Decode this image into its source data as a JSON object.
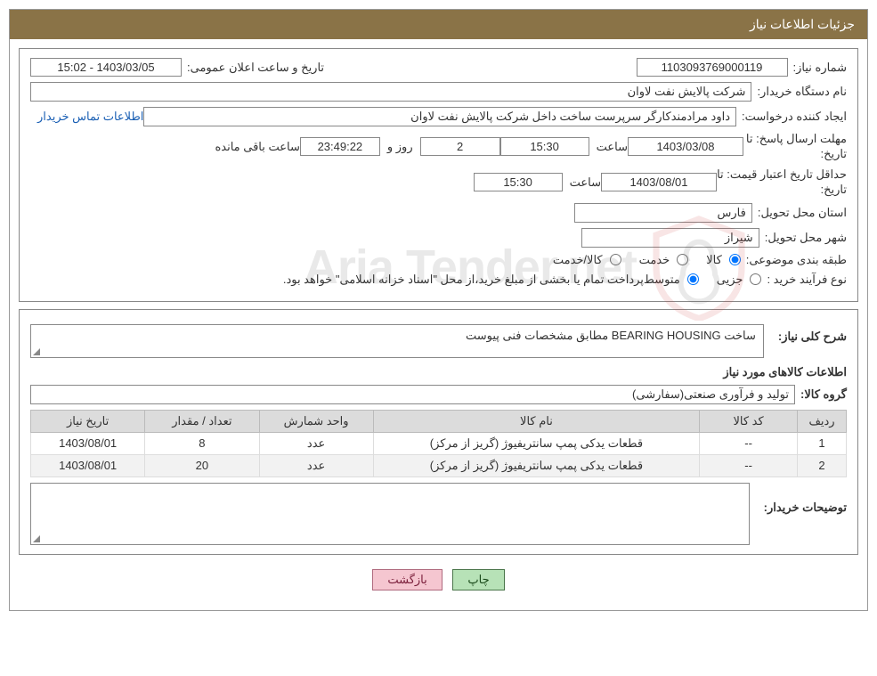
{
  "header": {
    "title": "جزئیات اطلاعات نیاز"
  },
  "top": {
    "need_number_label": "شماره نیاز:",
    "need_number_value": "1103093769000119",
    "announce_label": "تاریخ و ساعت اعلان عمومی:",
    "announce_value": "1403/03/05 - 15:02",
    "buyer_label": "نام دستگاه خریدار:",
    "buyer_value": "شرکت پالایش نفت لاوان",
    "requester_label": "ایجاد کننده درخواست:",
    "requester_value": "داود مرادمندکارگر سرپرست ساخت داخل شرکت پالایش نفت لاوان",
    "contact_link": "اطلاعات تماس خریدار",
    "deadline_label_1": "مهلت ارسال پاسخ:",
    "to_label": "تا",
    "date_label": "تاریخ:",
    "deadline_date": "1403/03/08",
    "time_label": "ساعت",
    "deadline_time": "15:30",
    "remain_days": "2",
    "days_and_label": "روز و",
    "remain_hms": "23:49:22",
    "remain_suffix": "ساعت باقی مانده",
    "min_valid_label": "حداقل تاریخ اعتبار قیمت:",
    "min_valid_date": "1403/08/01",
    "min_valid_time": "15:30",
    "province_label": "استان محل تحویل:",
    "province_value": "فارس",
    "city_label": "شهر محل تحویل:",
    "city_value": "شیراز",
    "class_label": "طبقه بندی موضوعی:",
    "radio_goods": "کالا",
    "radio_service": "خدمت",
    "radio_both": "کالا/خدمت",
    "process_label": "نوع فرآیند خرید :",
    "radio_partial": "جزیی",
    "radio_medium": "متوسط",
    "process_note": "پرداخت تمام یا بخشی از مبلغ خرید،از محل \"اسناد خزانه اسلامی\" خواهد بود."
  },
  "need": {
    "general_label": "شرح کلی نیاز:",
    "general_value": "ساخت BEARING HOUSING مطابق مشخصات فنی پیوست",
    "items_title": "اطلاعات کالاهای مورد نیاز",
    "group_label": "گروه کالا:",
    "group_value": "تولید و فرآوری صنعتی(سفارشی)"
  },
  "table": {
    "columns": [
      "ردیف",
      "کد کالا",
      "نام کالا",
      "واحد شمارش",
      "تعداد / مقدار",
      "تاریخ نیاز"
    ],
    "rows": [
      [
        "1",
        "--",
        "قطعات یدکی پمپ سانتریفیوژ (گریز از مرکز)",
        "عدد",
        "8",
        "1403/08/01"
      ],
      [
        "2",
        "--",
        "قطعات یدکی پمپ سانتریفیوژ (گریز از مرکز)",
        "عدد",
        "20",
        "1403/08/01"
      ]
    ],
    "col_widths": [
      "6%",
      "12%",
      "40%",
      "14%",
      "14%",
      "14%"
    ]
  },
  "notes": {
    "buyer_notes_label": "توضیحات خریدار:"
  },
  "buttons": {
    "print": "چاپ",
    "back": "بازگشت"
  },
  "watermark": {
    "text": "Aria Tender.net"
  },
  "colors": {
    "header_bg": "#8a7347",
    "border": "#888888",
    "th_bg": "#dcdcdc",
    "link": "#1a5fb4"
  }
}
